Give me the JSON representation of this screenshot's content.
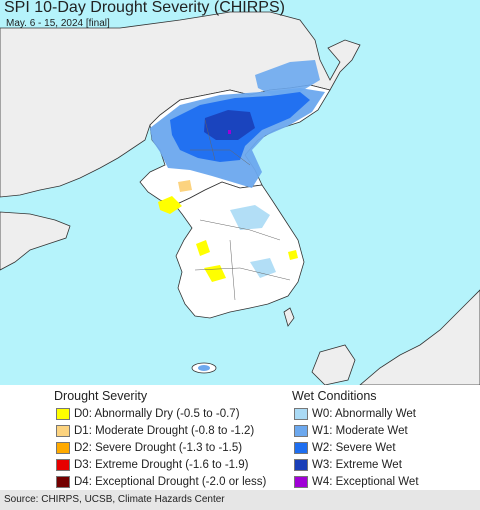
{
  "map": {
    "title": "SPI 10-Day Drought Severity (CHIRPS)",
    "subtitle": "May. 6 - 15, 2024 [final]"
  },
  "legend": {
    "drought_heading": "Drought Severity",
    "drought": [
      {
        "label": "D0: Abnormally Dry (-0.5 to -0.7)",
        "color": "#ffff00"
      },
      {
        "label": "D1: Moderate Drought (-0.8 to -1.2)",
        "color": "#fcd37f"
      },
      {
        "label": "D2: Severe Drought (-1.3 to -1.5)",
        "color": "#ffaa00"
      },
      {
        "label": "D3: Extreme Drought (-1.6 to -1.9)",
        "color": "#e60000"
      },
      {
        "label": "D4: Exceptional Drought (-2.0 or less)",
        "color": "#730000"
      }
    ],
    "wet_heading": "Wet Conditions",
    "wet": [
      {
        "label": "W0: Abnormally Wet",
        "color": "#aadaf5"
      },
      {
        "label": "W1: Moderate Wet",
        "color": "#6ca8ee"
      },
      {
        "label": "W2: Severe Wet",
        "color": "#1e6ef0"
      },
      {
        "label": "W3: Extreme Wet",
        "color": "#1a3fb8"
      },
      {
        "label": "W4: Exceptional Wet",
        "color": "#a000d6"
      }
    ]
  },
  "colors": {
    "sea": "#b5f3fb",
    "land_outside": "#eeeeee",
    "land_inside": "#ffffff"
  },
  "footer": {
    "source": "Source: CHIRPS, UCSB, Climate Hazards Center"
  }
}
